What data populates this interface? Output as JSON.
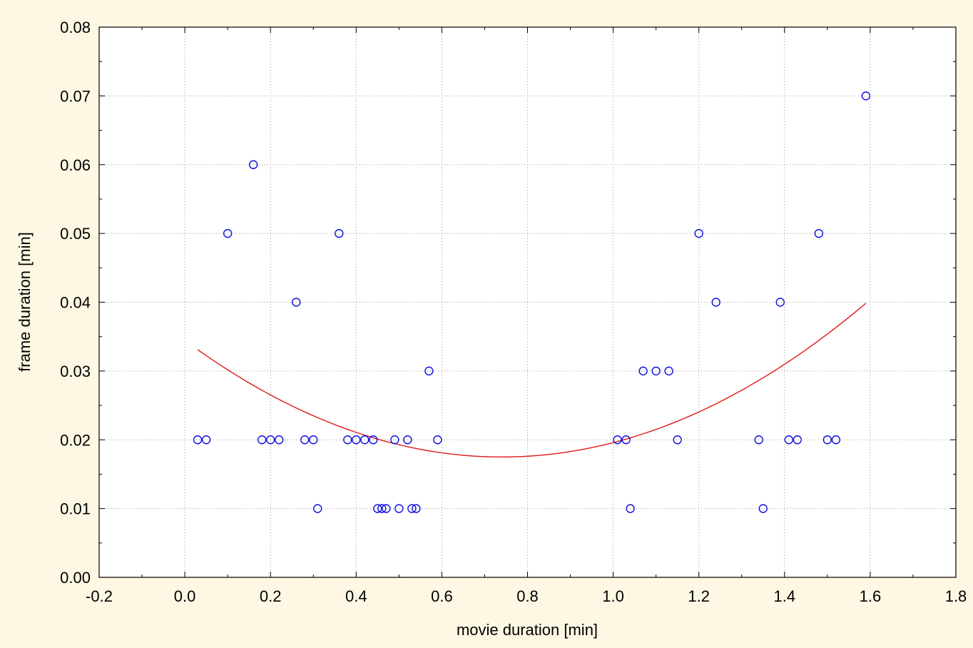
{
  "chart_data": {
    "type": "scatter",
    "title": "",
    "xlabel": "movie duration [min]",
    "ylabel": "frame duration [min]",
    "xlim": [
      -0.2,
      1.8
    ],
    "ylim": [
      0.0,
      0.08
    ],
    "xticks": [
      "-0.2",
      "0.0",
      "0.2",
      "0.4",
      "0.6",
      "0.8",
      "1.0",
      "1.2",
      "1.4",
      "1.6",
      "1.8"
    ],
    "yticks": [
      "0.00",
      "0.01",
      "0.02",
      "0.03",
      "0.04",
      "0.05",
      "0.06",
      "0.07",
      "0.08"
    ],
    "grid": true,
    "colors": {
      "points": "#1010e0",
      "fit": "#e01818"
    },
    "series": [
      {
        "values_type": "points",
        "points": [
          [
            0.03,
            0.02
          ],
          [
            0.05,
            0.02
          ],
          [
            0.1,
            0.05
          ],
          [
            0.16,
            0.06
          ],
          [
            0.18,
            0.02
          ],
          [
            0.2,
            0.02
          ],
          [
            0.22,
            0.02
          ],
          [
            0.26,
            0.04
          ],
          [
            0.28,
            0.02
          ],
          [
            0.3,
            0.02
          ],
          [
            0.31,
            0.01
          ],
          [
            0.36,
            0.05
          ],
          [
            0.38,
            0.02
          ],
          [
            0.4,
            0.02
          ],
          [
            0.42,
            0.02
          ],
          [
            0.44,
            0.02
          ],
          [
            0.45,
            0.01
          ],
          [
            0.46,
            0.01
          ],
          [
            0.47,
            0.01
          ],
          [
            0.49,
            0.02
          ],
          [
            0.5,
            0.01
          ],
          [
            0.52,
            0.02
          ],
          [
            0.53,
            0.01
          ],
          [
            0.54,
            0.01
          ],
          [
            0.57,
            0.03
          ],
          [
            0.59,
            0.02
          ],
          [
            1.01,
            0.02
          ],
          [
            1.03,
            0.02
          ],
          [
            1.04,
            0.01
          ],
          [
            1.07,
            0.03
          ],
          [
            1.1,
            0.03
          ],
          [
            1.13,
            0.03
          ],
          [
            1.15,
            0.02
          ],
          [
            1.2,
            0.05
          ],
          [
            1.24,
            0.04
          ],
          [
            1.34,
            0.02
          ],
          [
            1.35,
            0.01
          ],
          [
            1.39,
            0.04
          ],
          [
            1.41,
            0.02
          ],
          [
            1.43,
            0.02
          ],
          [
            1.48,
            0.05
          ],
          [
            1.5,
            0.02
          ],
          [
            1.52,
            0.02
          ],
          [
            1.59,
            0.07
          ]
        ]
      }
    ],
    "fit_curve": {
      "type": "quadratic",
      "x_range": [
        0.03,
        1.59
      ],
      "vertex": [
        0.74,
        0.0175
      ],
      "y_at_x_min": 0.0331
    }
  }
}
